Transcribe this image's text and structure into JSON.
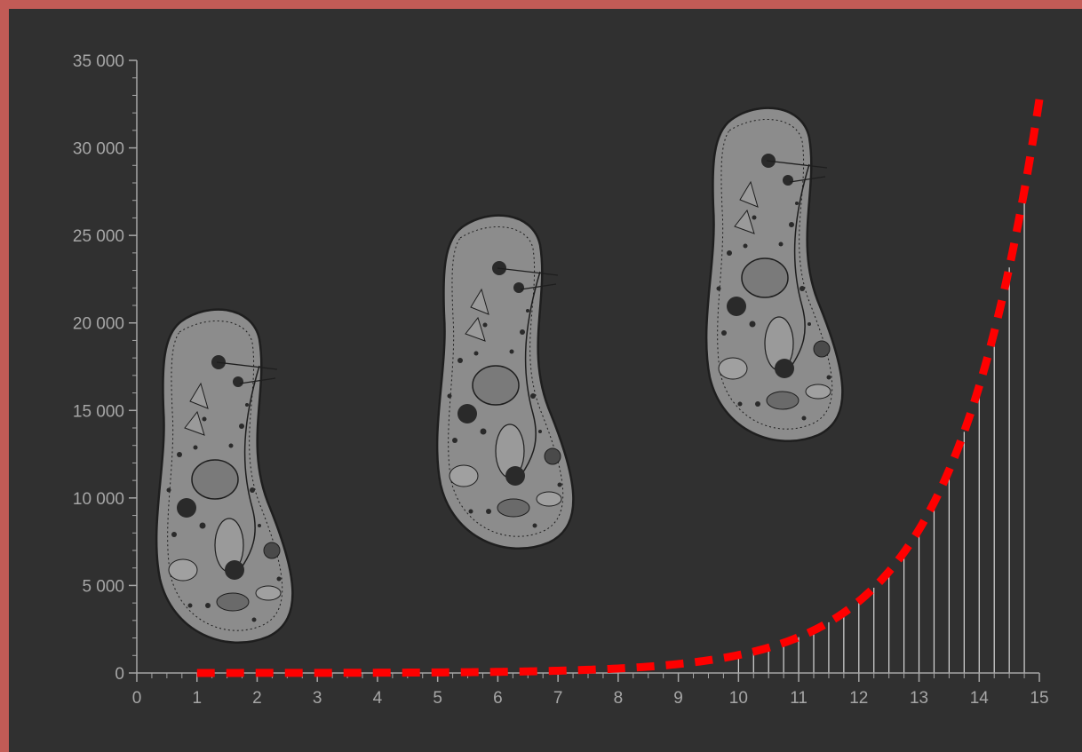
{
  "colors": {
    "frame": "#c25b56",
    "panel": "#303030",
    "axis": "#a6a6a6",
    "stem": "#d9d9d9",
    "curve": "#ff0000",
    "organism_fill": "#8c8c8c",
    "organism_ink": "#1e1e1e"
  },
  "organism_icon": "paramecium-illustration",
  "chart_data": {
    "type": "line",
    "title": "",
    "xlabel": "",
    "ylabel": "",
    "xlim": [
      0,
      15
    ],
    "ylim": [
      0,
      35000
    ],
    "grid": false,
    "legend": "none",
    "x_ticks": [
      "0",
      "1",
      "2",
      "3",
      "4",
      "5",
      "6",
      "7",
      "8",
      "9",
      "10",
      "11",
      "12",
      "13",
      "14",
      "15"
    ],
    "y_ticks": [
      "0",
      "5 000",
      "10 000",
      "15 000",
      "20 000",
      "25 000",
      "30 000",
      "35 000"
    ],
    "curve": {
      "style": "dashed",
      "formula": "y = 2^x",
      "x_start": 1,
      "x_end": 15,
      "points": [
        [
          1,
          2
        ],
        [
          2,
          4
        ],
        [
          3,
          8
        ],
        [
          4,
          16
        ],
        [
          5,
          32
        ],
        [
          6,
          64
        ],
        [
          7,
          128
        ],
        [
          8,
          256
        ],
        [
          9,
          512
        ],
        [
          10,
          1024
        ],
        [
          11,
          2048
        ],
        [
          12,
          4096
        ],
        [
          13,
          8192
        ],
        [
          14,
          16384
        ],
        [
          15,
          32768
        ]
      ]
    },
    "stems": {
      "x_start": 10,
      "x_end": 14.75,
      "step": 0.25,
      "y_follows": "curve"
    }
  }
}
